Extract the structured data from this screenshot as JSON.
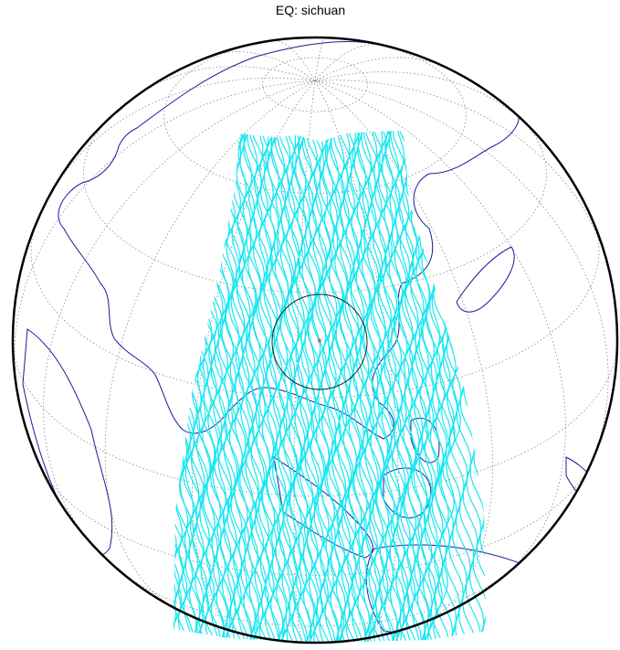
{
  "title": "EQ: sichuan"
}
